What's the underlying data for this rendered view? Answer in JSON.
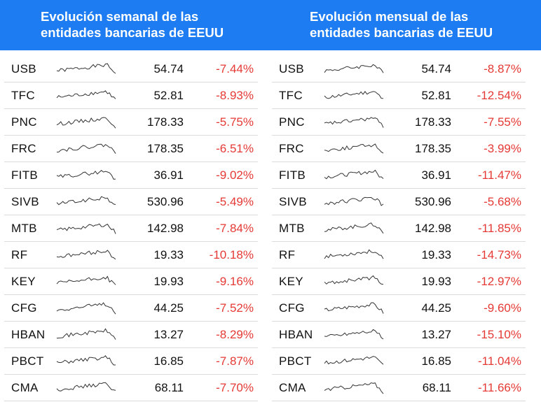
{
  "header": {
    "left_title": "Evolución semanal de las\nentidades bancarias de EEUU",
    "right_title": "Evolución mensual de las\nentidades bancarias de EEUU"
  },
  "colors": {
    "header_bg": "#1d7cf2",
    "negative": "#e53935",
    "sparkline": "#333333"
  },
  "chart_data": [
    {
      "type": "table",
      "title": "Evolución semanal de las entidades bancarias de EEUU",
      "columns": [
        "ticker",
        "sparkline",
        "price",
        "change"
      ],
      "rows": [
        {
          "ticker": "USB",
          "price": "54.74",
          "change": "-7.44%"
        },
        {
          "ticker": "TFC",
          "price": "52.81",
          "change": "-8.93%"
        },
        {
          "ticker": "PNC",
          "price": "178.33",
          "change": "-5.75%"
        },
        {
          "ticker": "FRC",
          "price": "178.35",
          "change": "-6.51%"
        },
        {
          "ticker": "FITB",
          "price": "36.91",
          "change": "-9.02%"
        },
        {
          "ticker": "SIVB",
          "price": "530.96",
          "change": "-5.49%"
        },
        {
          "ticker": "MTB",
          "price": "142.98",
          "change": "-7.84%"
        },
        {
          "ticker": "RF",
          "price": "19.33",
          "change": "-10.18%"
        },
        {
          "ticker": "KEY",
          "price": "19.93",
          "change": "-9.16%"
        },
        {
          "ticker": "CFG",
          "price": "44.25",
          "change": "-7.52%"
        },
        {
          "ticker": "HBAN",
          "price": "13.27",
          "change": "-8.29%"
        },
        {
          "ticker": "PBCT",
          "price": "16.85",
          "change": "-7.87%"
        },
        {
          "ticker": "CMA",
          "price": "68.11",
          "change": "-7.70%"
        }
      ]
    },
    {
      "type": "table",
      "title": "Evolución mensual de las entidades bancarias de EEUU",
      "columns": [
        "ticker",
        "sparkline",
        "price",
        "change"
      ],
      "rows": [
        {
          "ticker": "USB",
          "price": "54.74",
          "change": "-8.87%"
        },
        {
          "ticker": "TFC",
          "price": "52.81",
          "change": "-12.54%"
        },
        {
          "ticker": "PNC",
          "price": "178.33",
          "change": "-7.55%"
        },
        {
          "ticker": "FRC",
          "price": "178.35",
          "change": "-3.99%"
        },
        {
          "ticker": "FITB",
          "price": "36.91",
          "change": "-11.47%"
        },
        {
          "ticker": "SIVB",
          "price": "530.96",
          "change": "-5.68%"
        },
        {
          "ticker": "MTB",
          "price": "142.98",
          "change": "-11.85%"
        },
        {
          "ticker": "RF",
          "price": "19.33",
          "change": "-14.73%"
        },
        {
          "ticker": "KEY",
          "price": "19.93",
          "change": "-12.97%"
        },
        {
          "ticker": "CFG",
          "price": "44.25",
          "change": "-9.60%"
        },
        {
          "ticker": "HBAN",
          "price": "13.27",
          "change": "-15.10%"
        },
        {
          "ticker": "PBCT",
          "price": "16.85",
          "change": "-11.04%"
        },
        {
          "ticker": "CMA",
          "price": "68.11",
          "change": "-11.66%"
        }
      ]
    }
  ]
}
